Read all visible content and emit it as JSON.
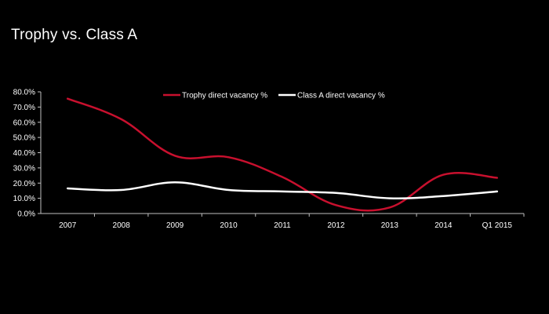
{
  "slide": {
    "title": "Trophy vs. Class A"
  },
  "chart_data": {
    "type": "line",
    "title": "",
    "xlabel": "",
    "ylabel": "",
    "categories": [
      "2007",
      "2008",
      "2009",
      "2010",
      "2011",
      "2012",
      "2013",
      "2014",
      "Q1 2015"
    ],
    "y_ticks": [
      "0.0%",
      "10.0%",
      "20.0%",
      "30.0%",
      "40.0%",
      "50.0%",
      "60.0%",
      "70.0%",
      "80.0%"
    ],
    "ylim": [
      0,
      80
    ],
    "grid": false,
    "legend_position": "top-center",
    "series": [
      {
        "name": "Trophy direct vacancy %",
        "color": "#c8102e",
        "values": [
          75.5,
          62.0,
          38.0,
          37.0,
          24.0,
          5.5,
          4.0,
          25.5,
          23.5
        ]
      },
      {
        "name": "Class A direct vacancy %",
        "color": "#ffffff",
        "values": [
          16.5,
          15.5,
          20.5,
          15.5,
          14.5,
          13.5,
          10.0,
          11.5,
          14.5
        ]
      }
    ]
  }
}
